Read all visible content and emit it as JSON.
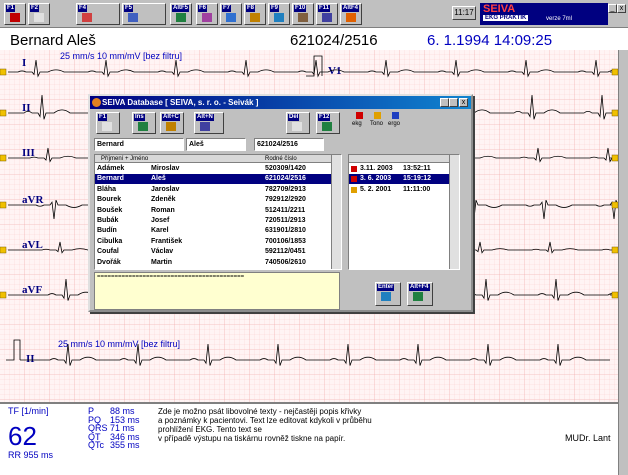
{
  "toolbar": {
    "keys": [
      "F1",
      "F2",
      "F4",
      "F5",
      "AltF5",
      "F6",
      "F7",
      "F8",
      "F9",
      "F10",
      "F11",
      "AltF4"
    ],
    "clock": "11:17",
    "brand": "SEIVA",
    "product": "EKG PRAKTIK",
    "version": "verze 7ml"
  },
  "patient": {
    "name": "Bernard Aleš",
    "id": "621024/2516",
    "datetime": "6. 1.1994 14:09:25"
  },
  "ecg": {
    "settings": "25 mm/s  10 mm/mV  [bez filtru]",
    "leads": [
      "I",
      "II",
      "III",
      "aVR",
      "aVL",
      "aVF"
    ],
    "chest_lead": "V1",
    "rhythm_lead": "II"
  },
  "dialog": {
    "title": "SEIVA Database [ SEIVA, s. r. o. - Seivák ]",
    "keys": [
      "F1",
      "Ins",
      "Alt+C",
      "Alt+N",
      "Del",
      "F12"
    ],
    "exam_types": [
      "ekg",
      "Tono",
      "ergo"
    ],
    "fields": [
      "Bernard",
      "Aleš",
      "621024/2516"
    ],
    "columns": [
      "Příjmení + Jméno",
      "Rodné číslo"
    ],
    "rows": [
      [
        "Adámek",
        "Miroslav",
        "520309/1420"
      ],
      [
        "Bernard",
        "Aleš",
        "621024/2516"
      ],
      [
        "Bláha",
        "Jaroslav",
        "782709/2913"
      ],
      [
        "Bourek",
        "Zdeněk",
        "792912/2920"
      ],
      [
        "Boušek",
        "Roman",
        "512411/2211"
      ],
      [
        "Bubák",
        "Josef",
        "720511/2913"
      ],
      [
        "Budín",
        "Karel",
        "631901/2810"
      ],
      [
        "Cibulka",
        "František",
        "700106/1853"
      ],
      [
        "Coufal",
        "Václav",
        "592112/0451"
      ],
      [
        "Dvořák",
        "Martin",
        "740506/2610"
      ]
    ],
    "exams": [
      [
        "3.11. 2003",
        "13:52:11"
      ],
      [
        "3. 6. 2003",
        "15:19:12"
      ],
      [
        "5. 2. 2001",
        "11:11:00"
      ]
    ],
    "memo": "==========================================",
    "buttons": [
      "Enter",
      "Alt+F4"
    ]
  },
  "measurements": {
    "rate_label": "TF [1/min]",
    "rate": "62",
    "rr": "RR 955 ms",
    "intervals": [
      [
        "P",
        "88 ms"
      ],
      [
        "PQ",
        "153 ms"
      ],
      [
        "QRS",
        "71 ms"
      ],
      [
        "QT",
        "346 ms"
      ],
      [
        "QTc",
        "355 ms"
      ]
    ]
  },
  "note": [
    "Zde je možno psát libovolné texty - nejčastěji popis křivky",
    "a poznámky k pacientovi. Text lze editovat kdykoli v průběhu",
    "prohlížení EKG. Tento text se",
    "v případě výstupu na tiskárnu rovněž tiskne na papír."
  ],
  "doctor": "MUDr. Lant"
}
